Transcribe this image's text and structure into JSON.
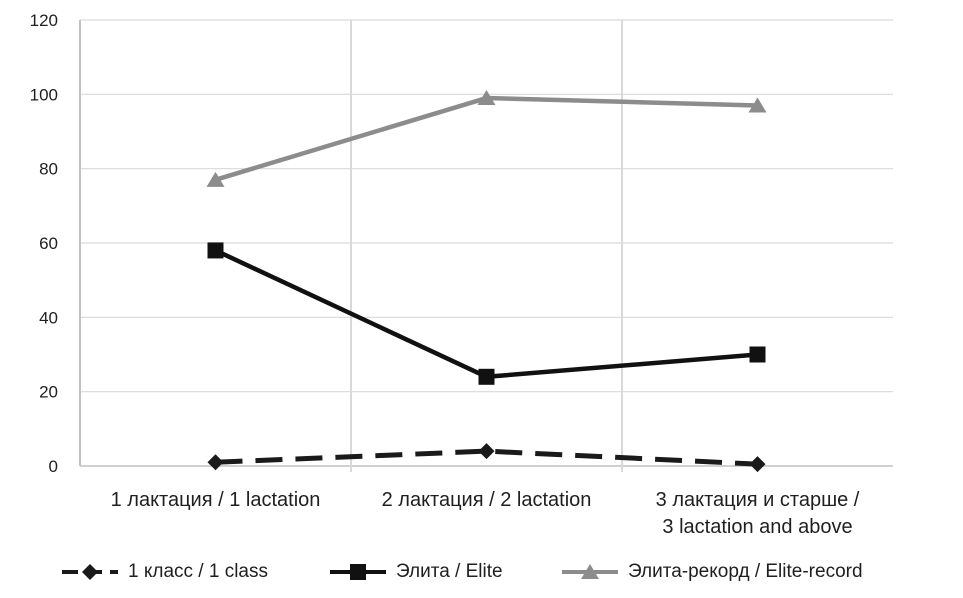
{
  "chart_data": {
    "type": "line",
    "title": "",
    "ylim": [
      0,
      120
    ],
    "yticks": [
      0,
      20,
      40,
      60,
      80,
      100,
      120
    ],
    "categories": [
      {
        "lines": [
          "1 лактация / 1 lactation"
        ]
      },
      {
        "lines": [
          "2 лактация / 2 lactation"
        ]
      },
      {
        "lines": [
          "3 лактация и старше /",
          "3 lactation and above"
        ]
      }
    ],
    "series": [
      {
        "name": "1 класс / 1 class",
        "values": [
          1,
          4,
          0.5
        ],
        "color": "#1a1a1a",
        "marker": "diamond",
        "line_style": "dashed"
      },
      {
        "name": "Элита / Elite",
        "values": [
          58,
          24,
          30
        ],
        "color": "#111111",
        "marker": "square",
        "line_style": "solid"
      },
      {
        "name": "Элита-рекорд / Elite-record",
        "values": [
          77,
          99,
          97
        ],
        "color": "#8c8c8c",
        "marker": "triangle",
        "line_style": "solid"
      }
    ],
    "grid": {
      "horizontal": true,
      "vertical_between_categories": true
    },
    "legend_position": "bottom",
    "colors": {
      "gridline": "#d9d9d9",
      "axis_line": "#c2c2c2",
      "text": "#1f1f1f",
      "background": "#ffffff"
    }
  }
}
